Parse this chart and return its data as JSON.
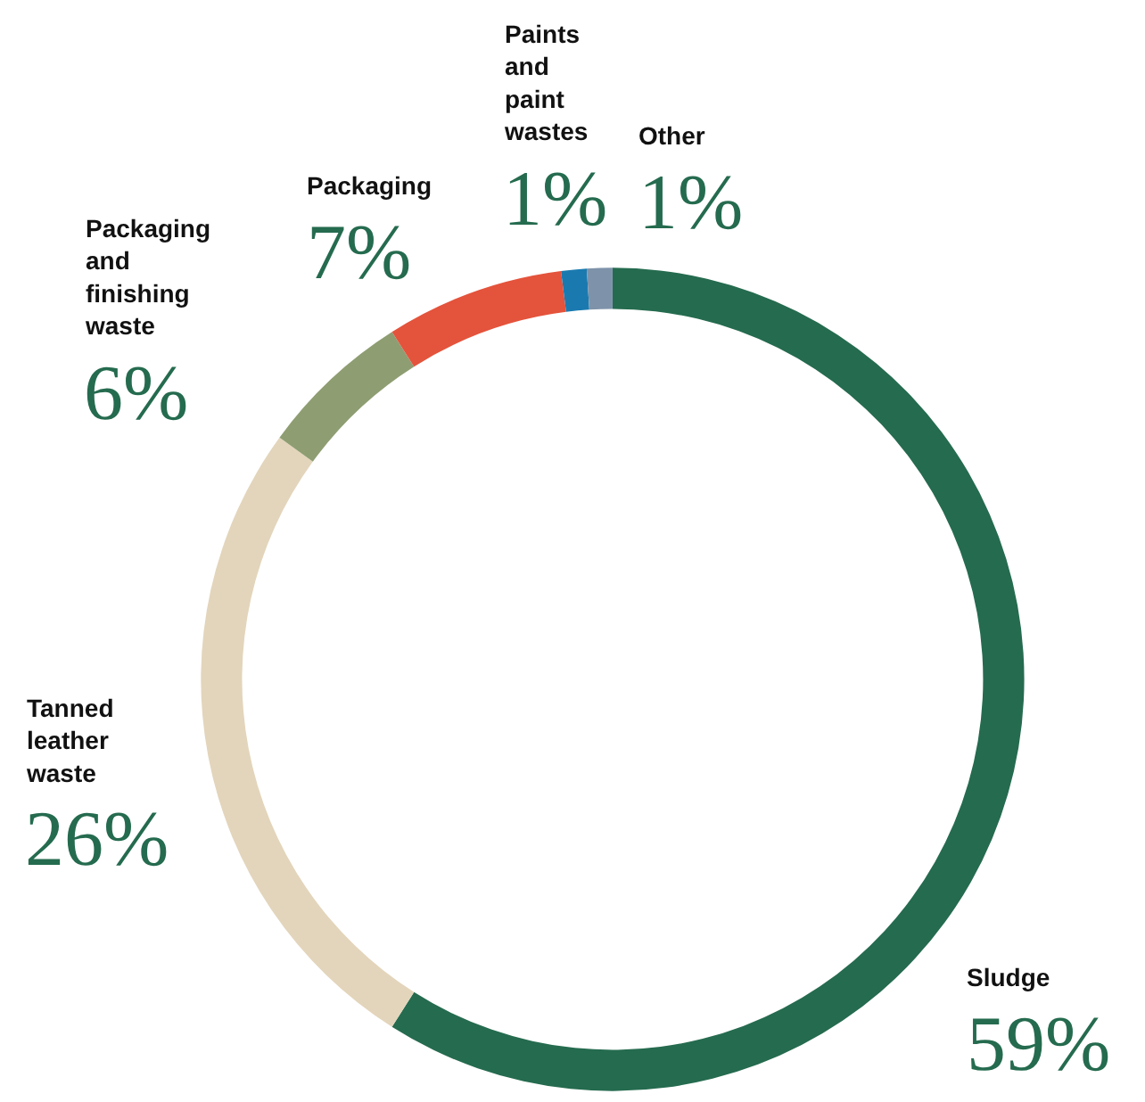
{
  "chart_data": {
    "type": "donut",
    "categories": [
      "Sludge",
      "Tanned leather waste",
      "Packaging and finishing waste",
      "Packaging",
      "Paints and paint wastes",
      "Other"
    ],
    "values": [
      59,
      26,
      6,
      7,
      1,
      1
    ],
    "value_labels": [
      "59%",
      "26%",
      "6%",
      "7%",
      "1%",
      "1%"
    ],
    "colors": [
      "#256b4f",
      "#e3d5bb",
      "#8e9e72",
      "#e4533b",
      "#1a7ab0",
      "#7e93aa"
    ],
    "legend": false
  }
}
